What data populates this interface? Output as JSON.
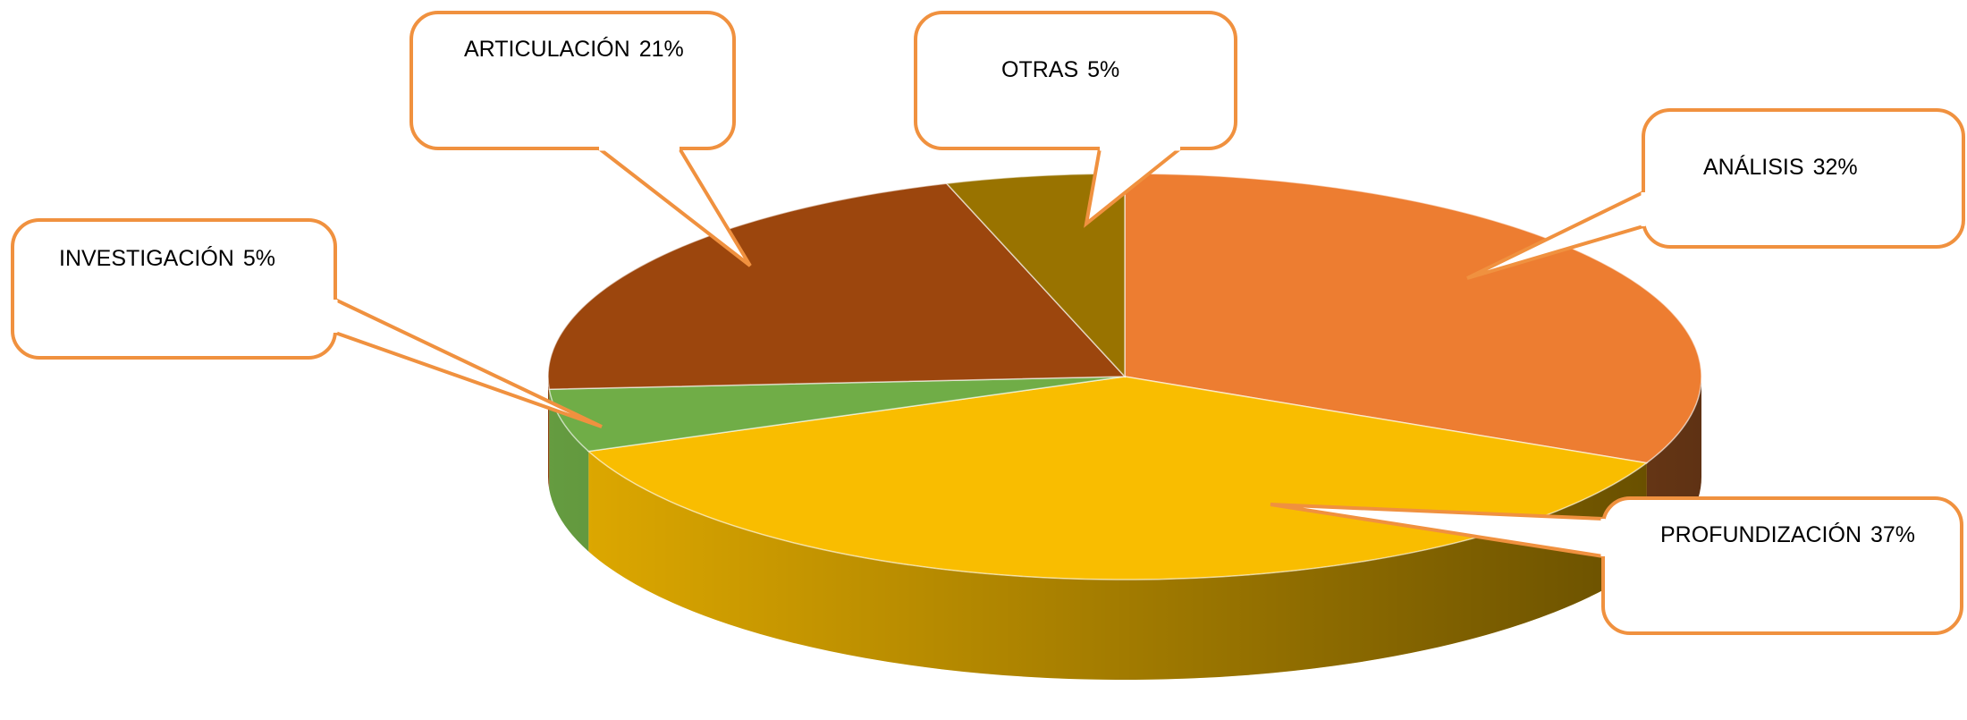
{
  "chart_data": {
    "type": "pie",
    "categories": [
      "ANÁLISIS",
      "PROFUNDIZACIÓN",
      "INVESTIGACIÓN",
      "ARTICULACIÓN",
      "OTRAS"
    ],
    "values": [
      32,
      37,
      5,
      21,
      5
    ],
    "value_labels": [
      "32%",
      "37%",
      "5%",
      "21%",
      "5%"
    ],
    "colors": [
      "#ed7d31",
      "#f9bd00",
      "#70ad47",
      "#9c460d",
      "#997300"
    ]
  }
}
